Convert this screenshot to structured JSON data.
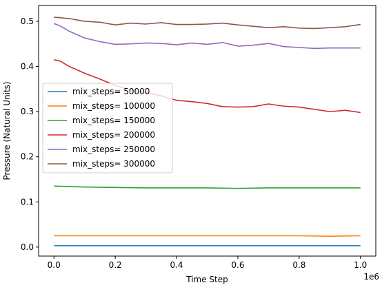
{
  "chart_data": {
    "type": "line",
    "xlabel": "Time Step",
    "ylabel": "Pressure (Natural Units)",
    "x_offset_text": "1e6",
    "xlim": [
      -0.05,
      1.05
    ],
    "ylim": [
      -0.02,
      0.535
    ],
    "xticks": [
      0.0,
      0.2,
      0.4,
      0.6,
      0.8,
      1.0
    ],
    "xtick_labels": [
      "0.0",
      "0.2",
      "0.4",
      "0.6",
      "0.8",
      "1.0"
    ],
    "yticks": [
      0.0,
      0.1,
      0.2,
      0.3,
      0.4,
      0.5
    ],
    "ytick_labels": [
      "0.0",
      "0.1",
      "0.2",
      "0.3",
      "0.4",
      "0.5"
    ],
    "grid": false,
    "legend_position": "center-left",
    "series": [
      {
        "name": "mix_steps= 50000",
        "color": "#1f77b4",
        "x": [
          0.0,
          0.1,
          0.2,
          0.3,
          0.4,
          0.5,
          0.6,
          0.7,
          0.8,
          0.9,
          1.0
        ],
        "y": [
          0.003,
          0.003,
          0.003,
          0.003,
          0.003,
          0.003,
          0.003,
          0.003,
          0.003,
          0.003,
          0.003
        ]
      },
      {
        "name": "mix_steps= 100000",
        "color": "#ff7f0e",
        "x": [
          0.0,
          0.1,
          0.2,
          0.3,
          0.4,
          0.5,
          0.6,
          0.7,
          0.8,
          0.9,
          1.0
        ],
        "y": [
          0.025,
          0.025,
          0.025,
          0.025,
          0.025,
          0.025,
          0.025,
          0.025,
          0.025,
          0.024,
          0.025
        ]
      },
      {
        "name": "mix_steps= 150000",
        "color": "#2ca02c",
        "x": [
          0.0,
          0.1,
          0.2,
          0.3,
          0.4,
          0.5,
          0.6,
          0.7,
          0.8,
          0.9,
          1.0
        ],
        "y": [
          0.135,
          0.133,
          0.132,
          0.131,
          0.131,
          0.131,
          0.13,
          0.131,
          0.131,
          0.131,
          0.131
        ]
      },
      {
        "name": "mix_steps= 200000",
        "color": "#d62728",
        "x": [
          0.0,
          0.02,
          0.05,
          0.1,
          0.15,
          0.2,
          0.25,
          0.3,
          0.35,
          0.4,
          0.45,
          0.5,
          0.55,
          0.6,
          0.65,
          0.7,
          0.75,
          0.8,
          0.85,
          0.9,
          0.95,
          1.0
        ],
        "y": [
          0.415,
          0.412,
          0.4,
          0.385,
          0.372,
          0.358,
          0.348,
          0.342,
          0.335,
          0.325,
          0.322,
          0.318,
          0.311,
          0.31,
          0.311,
          0.317,
          0.312,
          0.31,
          0.305,
          0.3,
          0.303,
          0.298
        ]
      },
      {
        "name": "mix_steps= 250000",
        "color": "#9467bd",
        "x": [
          0.0,
          0.02,
          0.05,
          0.1,
          0.15,
          0.2,
          0.25,
          0.3,
          0.35,
          0.4,
          0.45,
          0.5,
          0.55,
          0.6,
          0.65,
          0.7,
          0.75,
          0.8,
          0.85,
          0.9,
          0.95,
          1.0
        ],
        "y": [
          0.495,
          0.49,
          0.478,
          0.463,
          0.455,
          0.449,
          0.45,
          0.452,
          0.451,
          0.448,
          0.452,
          0.449,
          0.453,
          0.445,
          0.447,
          0.451,
          0.444,
          0.442,
          0.44,
          0.441,
          0.441,
          0.441
        ]
      },
      {
        "name": "mix_steps= 300000",
        "color": "#8c564b",
        "x": [
          0.0,
          0.02,
          0.05,
          0.1,
          0.15,
          0.2,
          0.25,
          0.3,
          0.35,
          0.4,
          0.45,
          0.5,
          0.55,
          0.6,
          0.65,
          0.7,
          0.75,
          0.8,
          0.85,
          0.9,
          0.95,
          1.0
        ],
        "y": [
          0.509,
          0.508,
          0.506,
          0.5,
          0.498,
          0.492,
          0.496,
          0.494,
          0.497,
          0.493,
          0.493,
          0.494,
          0.496,
          0.492,
          0.489,
          0.486,
          0.488,
          0.485,
          0.484,
          0.486,
          0.488,
          0.493
        ]
      }
    ]
  }
}
